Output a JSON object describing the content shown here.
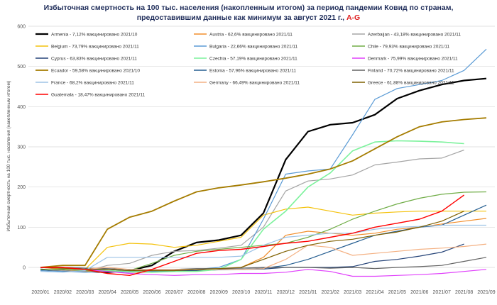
{
  "chart_data": {
    "type": "line",
    "title_line1": "Избыточная смертность на 100 тыс. населения (накопленным итогом) за период пандемии Ковид  по странам,",
    "title_line2_prefix": "предоставившим данные как минимум за август 2021 г., ",
    "title_line2_highlight": "A-G",
    "ylabel": "Избыточная смертность на 100 тыс. населения (накопленным итогом)",
    "xlabel": "",
    "ylim": [
      -50,
      600
    ],
    "yticks": [
      0,
      100,
      200,
      300,
      400,
      500,
      600
    ],
    "grid": true,
    "legend_position": "top-left",
    "x": [
      "2020/01",
      "2020/02",
      "2020/03",
      "2020/04",
      "2020/05",
      "2020/06",
      "2020/07",
      "2020/08",
      "2020/09",
      "2020/10",
      "2020/11",
      "2020/12",
      "2021/01",
      "2021/02",
      "2021/03",
      "2021/04",
      "2021/05",
      "2021/06",
      "2021/07",
      "2021/08",
      "2021/09"
    ],
    "series": [
      {
        "name": "Armenia - 7,12% вакцинировано 2021/10",
        "color": "#000000",
        "width": 2.2,
        "values": [
          -5,
          -8,
          -10,
          -12,
          -8,
          5,
          40,
          62,
          68,
          80,
          135,
          268,
          338,
          355,
          360,
          380,
          420,
          440,
          455,
          465,
          470
        ]
      },
      {
        "name": "Austria - 62,6% вакцинировано 2021/11",
        "color": "#f28e2b",
        "width": 1.2,
        "values": [
          0,
          -5,
          -10,
          -8,
          -12,
          -12,
          -10,
          -8,
          -5,
          0,
          25,
          80,
          90,
          85,
          80,
          85,
          95,
          100,
          108,
          115,
          122
        ]
      },
      {
        "name": "Azerbaijan - 43,18% вакцинировано 2021/11",
        "color": "#a5a5a5",
        "width": 1.2,
        "values": [
          -5,
          -8,
          -10,
          5,
          10,
          30,
          40,
          42,
          48,
          55,
          100,
          190,
          215,
          220,
          230,
          255,
          262,
          270,
          272,
          292,
          null
        ]
      },
      {
        "name": "Belgium - 73,79% вакцинировано 2021/11",
        "color": "#f4c20d",
        "width": 1.2,
        "values": [
          0,
          -3,
          -5,
          50,
          60,
          58,
          50,
          55,
          65,
          75,
          130,
          145,
          150,
          140,
          130,
          135,
          138,
          140,
          140,
          140,
          140
        ]
      },
      {
        "name": "Bulgaria - 22,66% вакцинировано 2021/11",
        "color": "#5b9bd5",
        "width": 1.2,
        "values": [
          -8,
          -10,
          -12,
          -10,
          -12,
          -10,
          -8,
          -5,
          0,
          20,
          120,
          232,
          240,
          245,
          330,
          418,
          445,
          455,
          465,
          490,
          543
        ]
      },
      {
        "name": "Chile - 79,93% вакцинировано 2021/11",
        "color": "#70ad47",
        "width": 1.2,
        "values": [
          -5,
          -5,
          -8,
          -10,
          -8,
          10,
          30,
          40,
          45,
          50,
          55,
          60,
          75,
          95,
          120,
          140,
          158,
          172,
          182,
          187,
          188
        ]
      },
      {
        "name": "Cyprus - 63,83% вакцинировано 2021/11",
        "color": "#264478",
        "width": 1.2,
        "values": [
          0,
          0,
          -2,
          -5,
          -8,
          -8,
          -8,
          -8,
          -6,
          -5,
          -4,
          0,
          0,
          0,
          2,
          15,
          20,
          28,
          38,
          58,
          null
        ]
      },
      {
        "name": "Czechia - 57,19% вакцинировано 2021/11",
        "color": "#7cf29c",
        "width": 1.6,
        "values": [
          0,
          -2,
          -5,
          -8,
          -10,
          -12,
          -10,
          -10,
          -5,
          20,
          95,
          140,
          200,
          235,
          290,
          312,
          315,
          314,
          312,
          308,
          null
        ]
      },
      {
        "name": "Denmark - 75,99% вакцинировано 2021/11",
        "color": "#e040fb",
        "width": 1.2,
        "values": [
          0,
          -2,
          -5,
          -10,
          -15,
          -18,
          -20,
          -18,
          -18,
          -15,
          -15,
          -12,
          -5,
          -10,
          -22,
          -22,
          -20,
          -18,
          -15,
          -10,
          -5
        ]
      },
      {
        "name": "Ecuador - 59,58% вакцинировано 2021/10",
        "color": "#a57c00",
        "width": 1.8,
        "values": [
          0,
          5,
          5,
          95,
          125,
          140,
          165,
          188,
          198,
          205,
          213,
          222,
          232,
          245,
          265,
          295,
          325,
          350,
          362,
          368,
          372
        ]
      },
      {
        "name": "Estonia - 57,96% вакцинировано 2021/11",
        "color": "#255e91",
        "width": 1.2,
        "values": [
          0,
          -2,
          -5,
          -5,
          -8,
          -8,
          -8,
          -5,
          -5,
          -5,
          -2,
          5,
          20,
          40,
          60,
          80,
          90,
          100,
          105,
          130,
          155
        ]
      },
      {
        "name": "Finland - 70,72% вакцинировано 2021/11",
        "color": "#636363",
        "width": 1.2,
        "values": [
          0,
          0,
          -2,
          -3,
          -5,
          -5,
          -5,
          -3,
          -3,
          -2,
          0,
          0,
          0,
          -2,
          0,
          -3,
          0,
          2,
          5,
          15,
          25
        ]
      },
      {
        "name": "France - 68,2% вакцинировано 2021/11",
        "color": "#9dc3e6",
        "width": 1.2,
        "values": [
          -10,
          -12,
          -8,
          25,
          25,
          25,
          25,
          25,
          25,
          28,
          55,
          75,
          80,
          85,
          85,
          95,
          100,
          102,
          105,
          105,
          105
        ]
      },
      {
        "name": "Germany - 66,49% вакцинировано 2021/11",
        "color": "#f4b183",
        "width": 1.2,
        "values": [
          0,
          -2,
          -5,
          0,
          -5,
          -5,
          -5,
          -5,
          -5,
          -5,
          -3,
          20,
          55,
          50,
          30,
          35,
          40,
          45,
          48,
          52,
          58
        ]
      },
      {
        "name": "Greece - 61,88% вакцинировано 2021/11",
        "color": "#7f6000",
        "width": 1.2,
        "values": [
          0,
          -2,
          -5,
          -5,
          -8,
          -8,
          -8,
          -5,
          -3,
          0,
          20,
          40,
          55,
          65,
          70,
          80,
          88,
          100,
          115,
          140,
          null
        ]
      },
      {
        "name": "Guatemala - 18,47% вакцинировано 2021/11",
        "color": "#ff0000",
        "width": 1.4,
        "values": [
          0,
          0,
          -5,
          -15,
          -20,
          -5,
          15,
          35,
          42,
          45,
          52,
          60,
          65,
          75,
          85,
          100,
          110,
          120,
          140,
          180,
          null
        ]
      }
    ]
  }
}
